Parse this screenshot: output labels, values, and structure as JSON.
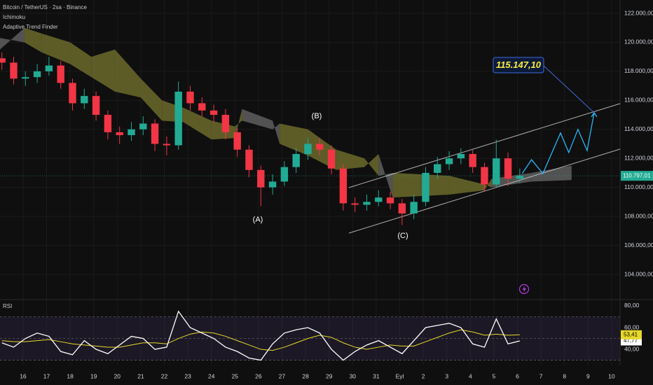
{
  "header": {
    "symbol": "Bitcoin / TetherUS · 2sa · Binance",
    "indicators": [
      "Ichimoku",
      "Adaptive Trend Finder"
    ]
  },
  "chart_data": [
    {
      "type": "candlestick",
      "xlim": [
        -0.98,
        25.36
      ],
      "xticks": [
        {
          "value": 0,
          "label": "16"
        },
        {
          "value": 1,
          "label": "17"
        },
        {
          "value": 2,
          "label": "18"
        },
        {
          "value": 3,
          "label": "19"
        },
        {
          "value": 4,
          "label": "20"
        },
        {
          "value": 5,
          "label": "21"
        },
        {
          "value": 6,
          "label": "22"
        },
        {
          "value": 7,
          "label": "23"
        },
        {
          "value": 8,
          "label": "24"
        },
        {
          "value": 9,
          "label": "25"
        },
        {
          "value": 10,
          "label": "26"
        },
        {
          "value": 11,
          "label": "27"
        },
        {
          "value": 12,
          "label": "28"
        },
        {
          "value": 13,
          "label": "29"
        },
        {
          "value": 14,
          "label": "30"
        },
        {
          "value": 15,
          "label": "31"
        },
        {
          "value": 16,
          "label": "Eyl"
        },
        {
          "value": 17,
          "label": "2"
        },
        {
          "value": 18,
          "label": "3"
        },
        {
          "value": 19,
          "label": "4"
        },
        {
          "value": 20,
          "label": "5"
        },
        {
          "value": 21,
          "label": "6"
        },
        {
          "value": 22,
          "label": "7"
        },
        {
          "value": 23,
          "label": "8"
        },
        {
          "value": 24,
          "label": "9"
        },
        {
          "value": 25,
          "label": "10"
        }
      ],
      "ylim": [
        102263,
        122917
      ],
      "yticks": [
        {
          "value": 104000,
          "label": "104.000,00"
        },
        {
          "value": 106000,
          "label": "106.000,00"
        },
        {
          "value": 108000,
          "label": "108.000,00"
        },
        {
          "value": 110000,
          "label": "110.000,00"
        },
        {
          "value": 112000,
          "label": "112.000,00"
        },
        {
          "value": 114000,
          "label": "114.000,00"
        },
        {
          "value": 116000,
          "label": "116.000,00"
        },
        {
          "value": 118000,
          "label": "118.000,00"
        },
        {
          "value": 120000,
          "label": "120.000,00"
        },
        {
          "value": 122000,
          "label": "122.000,00"
        }
      ],
      "grid": true,
      "up_color": "#22ab94",
      "down_color": "#f23645",
      "x": [
        -0.9,
        -0.4,
        0.1,
        0.6,
        1.1,
        1.6,
        2.1,
        2.6,
        3.1,
        3.6,
        4.1,
        4.6,
        5.1,
        5.6,
        6.1,
        6.6,
        7.1,
        7.6,
        8.1,
        8.6,
        9.1,
        9.6,
        10.1,
        10.6,
        11.1,
        11.6,
        12.1,
        12.6,
        13.1,
        13.6,
        14.1,
        14.6,
        15.1,
        15.6,
        16.1,
        16.6,
        17.1,
        17.6,
        18.1,
        18.6,
        19.1,
        19.6,
        20.1,
        20.6,
        21.1
      ],
      "open": [
        118900,
        118600,
        117500,
        117600,
        118000,
        118400,
        117200,
        115800,
        116300,
        115000,
        113800,
        113600,
        114000,
        114400,
        113000,
        112900,
        116600,
        115800,
        115300,
        115000,
        113800,
        112600,
        111200,
        110000,
        110400,
        111400,
        112300,
        113000,
        112600,
        111300,
        108900,
        108800,
        109000,
        109300,
        108900,
        108200,
        109000,
        111000,
        111600,
        112000,
        112300,
        111400,
        110200,
        112000,
        110600
      ],
      "high": [
        119300,
        119000,
        118000,
        118500,
        119000,
        118700,
        117500,
        116800,
        116600,
        115300,
        114200,
        114500,
        114900,
        114700,
        113500,
        117300,
        117000,
        116200,
        115700,
        115400,
        114100,
        112900,
        111500,
        110900,
        111800,
        112700,
        113400,
        113400,
        112900,
        111600,
        109300,
        109500,
        109800,
        109700,
        109200,
        109500,
        111400,
        112100,
        112500,
        112700,
        112600,
        111700,
        113300,
        112400,
        111300
      ],
      "low": [
        118100,
        117100,
        117000,
        117200,
        117700,
        116800,
        115300,
        115400,
        114600,
        113300,
        113000,
        113200,
        113600,
        112500,
        112200,
        112600,
        115300,
        114900,
        114500,
        113300,
        112100,
        110700,
        108700,
        109500,
        110100,
        111000,
        111900,
        112200,
        110900,
        108400,
        108300,
        108400,
        108700,
        108500,
        107400,
        107800,
        108700,
        110600,
        111200,
        111600,
        111000,
        109700,
        110000,
        110100,
        110300
      ],
      "close": [
        118600,
        117500,
        117600,
        118000,
        118400,
        117200,
        115800,
        116300,
        115000,
        113800,
        113600,
        114000,
        114400,
        113000,
        112900,
        116600,
        115800,
        115300,
        115000,
        113800,
        112600,
        111200,
        110000,
        110400,
        111400,
        112300,
        113000,
        112600,
        111300,
        108900,
        108800,
        109000,
        109300,
        108900,
        108200,
        109000,
        111000,
        111600,
        112000,
        112300,
        111400,
        110200,
        112000,
        110600,
        110797.01
      ],
      "cloud": {
        "bull_color": "#6b6a2c",
        "bear_color": "#6a6a6a",
        "x": [
          -0.98,
          0.06,
          0.8,
          2.0,
          2.9,
          3.9,
          5.0,
          5.9,
          6.8,
          8.0,
          9.0,
          9.3,
          10.6,
          10.9,
          12.1,
          13.3,
          14.5,
          15.1,
          15.7,
          16.9,
          18.1,
          19.6,
          19.9,
          21.6,
          23.3
        ],
        "span_a": [
          119500,
          121000,
          120600,
          120000,
          119000,
          119500,
          117500,
          116000,
          115500,
          114600,
          114200,
          114600,
          114000,
          114400,
          114000,
          112600,
          112000,
          110800,
          111000,
          110900,
          110800,
          110200,
          110000,
          110400,
          110500
        ],
        "span_b": [
          120300,
          120000,
          119300,
          118500,
          117600,
          116600,
          116200,
          114600,
          114500,
          113300,
          113400,
          115400,
          114600,
          113000,
          112200,
          111200,
          111400,
          112300,
          109300,
          109400,
          109500,
          109800,
          110600,
          111000,
          111500
        ]
      },
      "channel": {
        "color": "#d6d6d6",
        "x": [
          13.84,
          25.36
        ],
        "upper": [
          109984,
          115775
        ],
        "lower": [
          106847,
          112638
        ]
      },
      "projection": {
        "color": "#29b6f6",
        "x": [
          21.2,
          21.6,
          22.08,
          22.83,
          23.18,
          23.57,
          23.96,
          24.26
        ],
        "values": [
          110950,
          111910,
          110950,
          113750,
          112400,
          114000,
          112540,
          115147.1
        ]
      },
      "target": {
        "value": 115147.1,
        "label": "115.147,10"
      },
      "annotations": [
        "(A)",
        "(B)",
        "(C)"
      ],
      "last_price": {
        "value": 110797.01,
        "label": "110.797,01"
      }
    },
    {
      "type": "line",
      "title": "RSI",
      "xlim": [
        -0.98,
        25.36
      ],
      "ylim": [
        25.2,
        85.8
      ],
      "yticks": [
        {
          "value": 40,
          "label": "40,00"
        },
        {
          "value": 60,
          "label": "60,00"
        },
        {
          "value": 80,
          "label": "80,00"
        }
      ],
      "band_upper": 70,
      "band_lower": 30,
      "midline": 50,
      "x": [
        -0.9,
        -0.4,
        0.1,
        0.6,
        1.1,
        1.6,
        2.1,
        2.6,
        3.1,
        3.6,
        4.1,
        4.6,
        5.1,
        5.6,
        6.1,
        6.6,
        7.1,
        7.6,
        8.1,
        8.6,
        9.1,
        9.6,
        10.1,
        10.6,
        11.1,
        11.6,
        12.1,
        12.6,
        13.1,
        13.6,
        14.1,
        14.6,
        15.1,
        15.6,
        16.1,
        16.6,
        17.1,
        17.6,
        18.1,
        18.6,
        19.1,
        19.6,
        20.1,
        20.6,
        21.1
      ],
      "series": [
        {
          "color": "#ffffff",
          "last_label": "47,77",
          "values": [
            46,
            42,
            50,
            55,
            52,
            38,
            35,
            48,
            40,
            36,
            44,
            52,
            50,
            40,
            42,
            75,
            60,
            55,
            50,
            42,
            38,
            32,
            30,
            45,
            55,
            58,
            60,
            55,
            40,
            30,
            38,
            44,
            48,
            42,
            36,
            48,
            60,
            62,
            64,
            60,
            45,
            42,
            68,
            45,
            47.77
          ]
        },
        {
          "color": "#e8d92b",
          "last_label": "53,41",
          "values": [
            48,
            47,
            47,
            48,
            49,
            47,
            45,
            44,
            43,
            42,
            42,
            44,
            46,
            46,
            45,
            50,
            54,
            56,
            55,
            52,
            48,
            44,
            40,
            39,
            42,
            46,
            50,
            53,
            51,
            46,
            42,
            40,
            42,
            44,
            43,
            43,
            47,
            51,
            55,
            58,
            56,
            53,
            54,
            53,
            53.41
          ]
        }
      ]
    }
  ]
}
